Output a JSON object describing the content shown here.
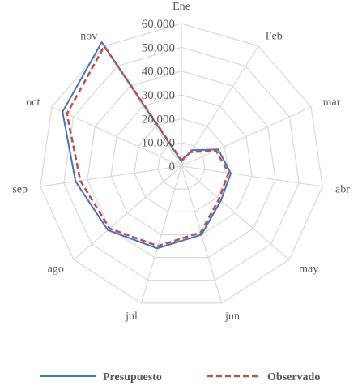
{
  "chart_data": {
    "type": "radar",
    "categories": [
      "Ene",
      "Feb",
      "mar",
      "abr",
      "may",
      "jun",
      "jul",
      "ago",
      "sep",
      "oct",
      "nov"
    ],
    "rlim": [
      0,
      60000
    ],
    "rticks": [
      0,
      10000,
      20000,
      30000,
      40000,
      50000,
      60000
    ],
    "rtick_labels": [
      "0",
      "10,000",
      "20,000",
      "30,000",
      "40,000",
      "50,000",
      "60,000"
    ],
    "grid": true,
    "legend_position": "bottom",
    "series": [
      {
        "name": "Presupuesto",
        "values": [
          2000,
          8000,
          17000,
          21000,
          22000,
          30000,
          36000,
          41000,
          45000,
          55000,
          62000
        ],
        "color": "#4472C4",
        "dash": "solid"
      },
      {
        "name": "Observado",
        "values": [
          2500,
          7000,
          16000,
          20000,
          21000,
          29000,
          35000,
          40000,
          43000,
          53000,
          60000
        ],
        "color": "#C0504D",
        "dash": "dashed"
      }
    ]
  }
}
